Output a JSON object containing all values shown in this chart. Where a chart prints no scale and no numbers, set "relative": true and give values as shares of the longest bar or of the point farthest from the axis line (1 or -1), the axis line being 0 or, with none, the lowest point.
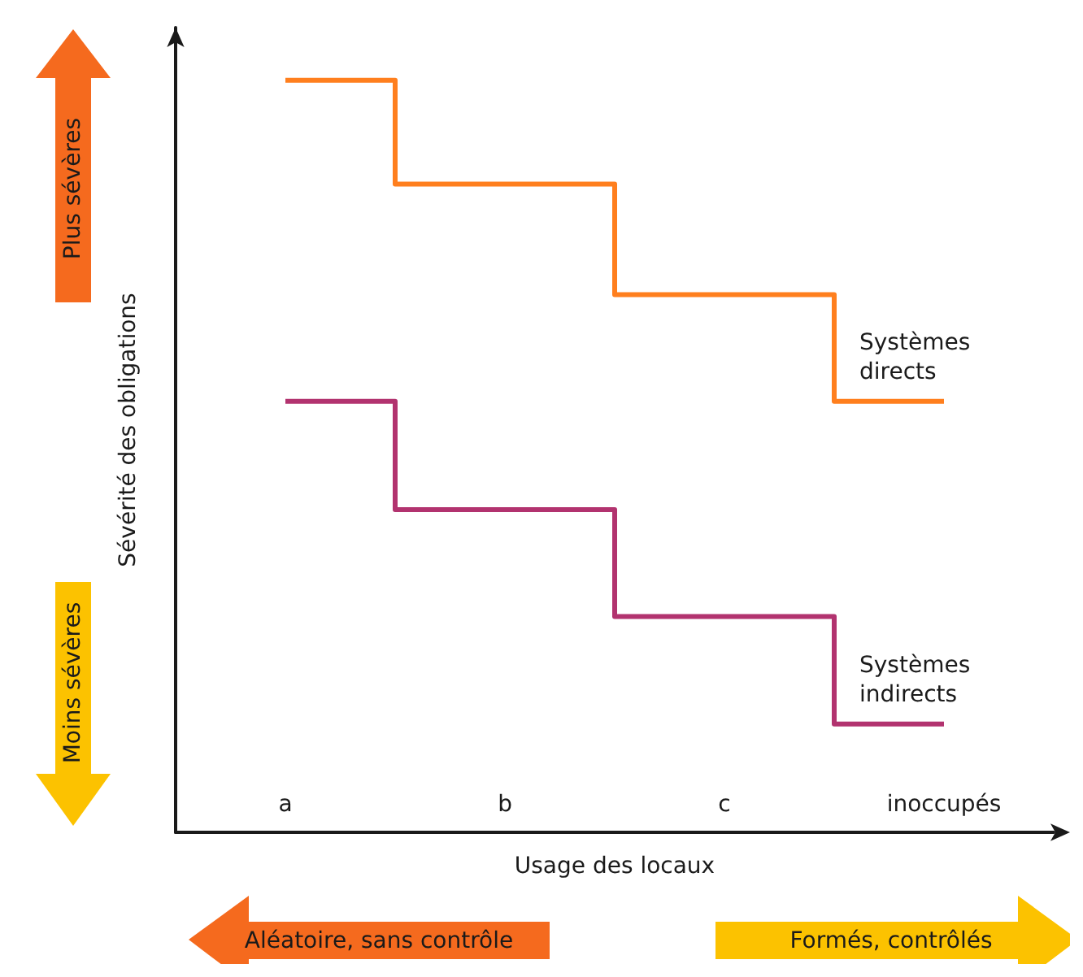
{
  "chart_data": {
    "type": "step",
    "xlabel": "Usage des locaux",
    "ylabel": "Sévérité des obligations",
    "categories": [
      "a",
      "b",
      "c",
      "inoccupés"
    ],
    "relative": true,
    "marker": "none",
    "series": [
      {
        "name": "Systèmes directs",
        "color": "#ff7f1e",
        "values": [
          1,
          0.862,
          0.715,
          0.573
        ]
      },
      {
        "name": "Systèmes indirects",
        "color": "#b2336f",
        "values": [
          0.573,
          0.429,
          0.287,
          0.144
        ]
      }
    ],
    "annotations": [
      "Plus sévères",
      "Moins sévères",
      "Aléatoire, sans contrôle",
      "Formés, contrôlés"
    ]
  }
}
